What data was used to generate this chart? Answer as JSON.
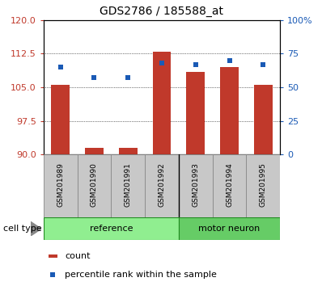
{
  "title": "GDS2786 / 185588_at",
  "samples": [
    "GSM201989",
    "GSM201990",
    "GSM201991",
    "GSM201992",
    "GSM201993",
    "GSM201994",
    "GSM201995"
  ],
  "bar_values": [
    105.5,
    91.5,
    91.5,
    113.0,
    108.5,
    109.5,
    105.5
  ],
  "dot_values": [
    65,
    57,
    57,
    68,
    67,
    70,
    67
  ],
  "bar_bottom": 90,
  "ylim_left": [
    90,
    120
  ],
  "ylim_right": [
    0,
    100
  ],
  "yticks_left": [
    90,
    97.5,
    105,
    112.5,
    120
  ],
  "yticks_right": [
    0,
    25,
    50,
    75,
    100
  ],
  "bar_color": "#c0392b",
  "dot_color": "#1a5ab5",
  "ref_color": "#90ee90",
  "mn_color": "#66cc66",
  "gray_box_color": "#c8c8c8",
  "legend_bar_label": "count",
  "legend_dot_label": "percentile rank within the sample",
  "cell_type_label": "cell type",
  "group_label_reference": "reference",
  "group_label_motor": "motor neuron",
  "ref_count": 4,
  "mn_count": 3,
  "fig_width": 3.98,
  "fig_height": 3.54,
  "dpi": 100
}
